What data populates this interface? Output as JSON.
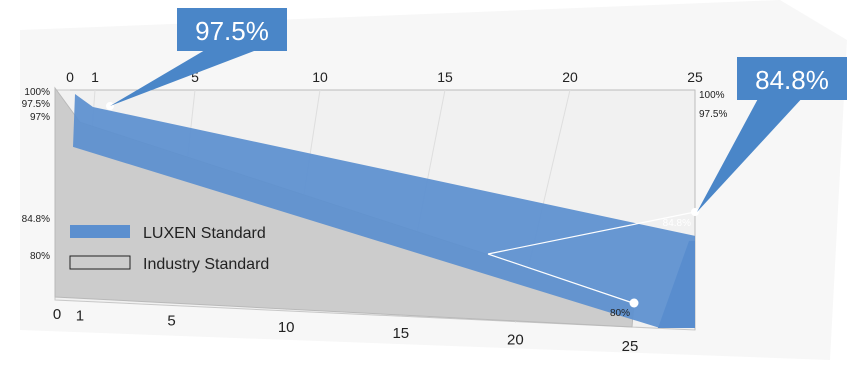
{
  "colors": {
    "luxen": "#5b8fcf",
    "luxen_dark": "#3f79c2",
    "industry": "#cccccc",
    "callout": "#4a86c8"
  },
  "chart_data": {
    "type": "area",
    "title": "",
    "x": [
      0,
      1,
      25
    ],
    "xlim": [
      0,
      25
    ],
    "x_ticks": [
      "0",
      "1",
      "5",
      "10",
      "15",
      "20",
      "25"
    ],
    "ylim": [
      80,
      100
    ],
    "y_ticks_left": [
      "100%",
      "97.5%",
      "97%",
      "84.8%",
      "80%"
    ],
    "y_ticks_right": [
      "100%",
      "97.5%"
    ],
    "series": [
      {
        "name": "LUXEN Standard",
        "values": [
          100,
          97.5,
          84.8
        ]
      },
      {
        "name": "Industry Standard",
        "values": [
          100,
          97,
          80
        ]
      }
    ],
    "legend": [
      "LUXEN Standard",
      "Industry Standard"
    ],
    "legend_position": "middle-left",
    "annotations": {
      "callout_start": "97.5%",
      "callout_end": "84.8%",
      "label_luxen_end": "84.8%",
      "label_industry_end": "80%"
    }
  }
}
